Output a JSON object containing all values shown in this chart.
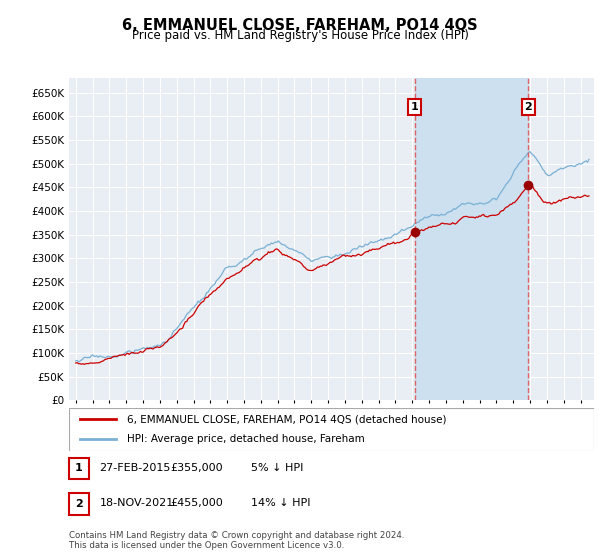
{
  "title": "6, EMMANUEL CLOSE, FAREHAM, PO14 4QS",
  "subtitle": "Price paid vs. HM Land Registry's House Price Index (HPI)",
  "ylabel_values": [
    0,
    50000,
    100000,
    150000,
    200000,
    250000,
    300000,
    350000,
    400000,
    450000,
    500000,
    550000,
    600000,
    650000
  ],
  "ylim": [
    0,
    680000
  ],
  "x_start_year": 1995,
  "x_end_year": 2025,
  "transaction1_year": 2015.15,
  "transaction1_price": 355000,
  "transaction2_year": 2021.9,
  "transaction2_price": 455000,
  "legend_label1": "6, EMMANUEL CLOSE, FAREHAM, PO14 4QS (detached house)",
  "legend_label2": "HPI: Average price, detached house, Fareham",
  "annotation1_label": "1",
  "annotation1_date": "27-FEB-2015",
  "annotation1_price": "£355,000",
  "annotation1_pct": "5% ↓ HPI",
  "annotation2_label": "2",
  "annotation2_date": "18-NOV-2021",
  "annotation2_price": "£455,000",
  "annotation2_pct": "14% ↓ HPI",
  "footer": "Contains HM Land Registry data © Crown copyright and database right 2024.\nThis data is licensed under the Open Government Licence v3.0.",
  "line_color_property": "#cc0000",
  "line_color_hpi": "#7ab0d4",
  "background_plot": "#e8eef4",
  "grid_color": "#ffffff",
  "shade_color": "#cce0f0"
}
